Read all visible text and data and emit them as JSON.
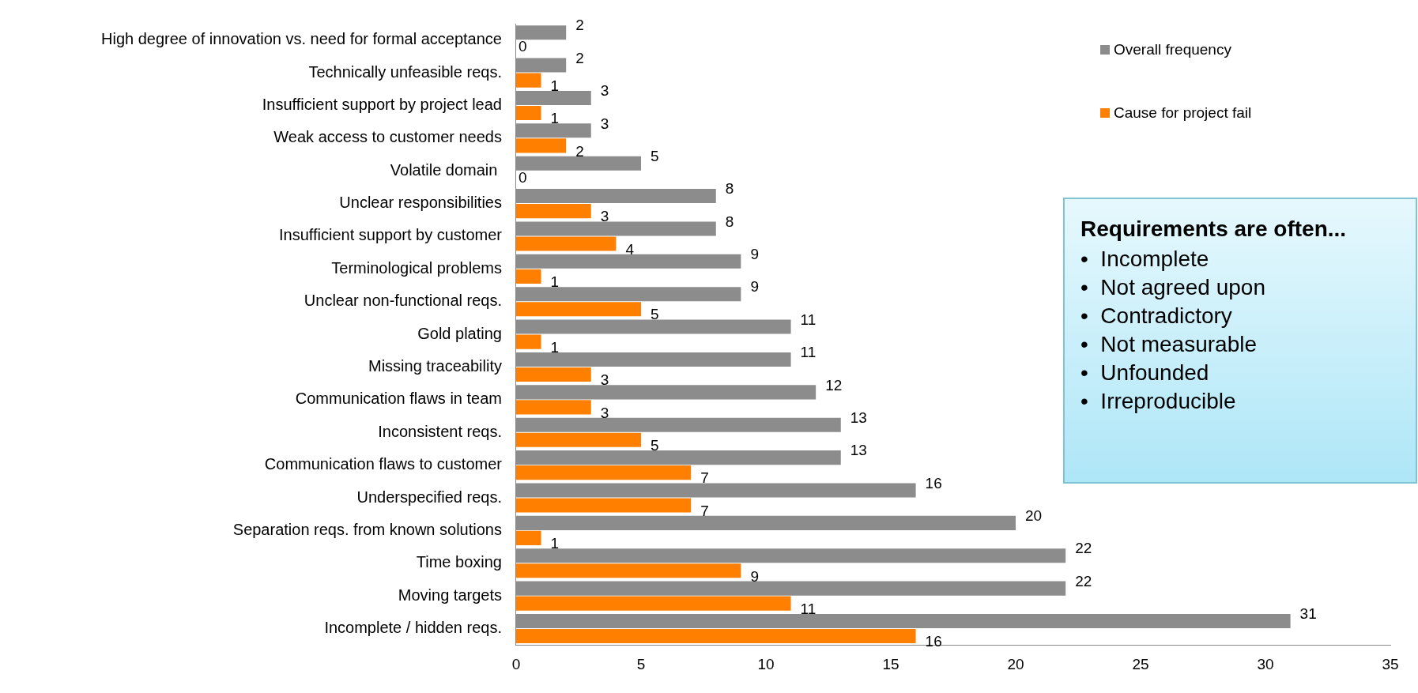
{
  "chart_data": {
    "type": "bar",
    "orientation": "horizontal",
    "categories": [
      "High degree of innovation vs. need for formal acceptance",
      "Technically unfeasible reqs.",
      "Insufficient support by project lead",
      "Weak access to customer needs",
      "Volatile domain ",
      "Unclear responsibilities",
      "Insufficient support by customer",
      "Terminological problems",
      "Unclear non-functional reqs.",
      "Gold plating",
      "Missing traceability",
      "Communication flaws in team",
      "Inconsistent reqs.",
      "Communication flaws to customer",
      "Underspecified reqs.",
      "Separation reqs. from known solutions",
      "Time boxing",
      "Moving targets",
      "Incomplete / hidden reqs."
    ],
    "series": [
      {
        "name": "Overall frequency",
        "color": "#8c8c8c",
        "values": [
          2,
          2,
          3,
          3,
          5,
          8,
          8,
          9,
          9,
          11,
          11,
          12,
          13,
          13,
          16,
          20,
          22,
          22,
          31
        ]
      },
      {
        "name": "Cause for project fail",
        "color": "#ff7f00",
        "values": [
          0,
          1,
          1,
          2,
          0,
          3,
          4,
          1,
          5,
          1,
          3,
          3,
          5,
          7,
          7,
          1,
          9,
          11,
          16
        ]
      }
    ],
    "xlim": [
      0,
      35
    ],
    "xticks": [
      0,
      5,
      10,
      15,
      20,
      25,
      30,
      35
    ],
    "data_labels": true,
    "legend": "top right",
    "grid": false,
    "annotations": [
      "Requirements are often...",
      "•  Incomplete",
      "•  Not agreed upon",
      "•  Contradictory",
      "•  Not measurable",
      "•  Unfounded",
      "•  Irreproducible"
    ]
  }
}
